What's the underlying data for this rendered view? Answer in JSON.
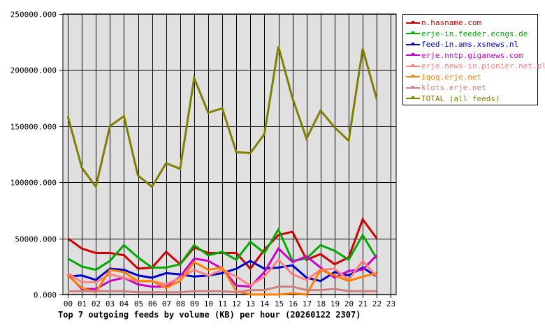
{
  "chart_data": {
    "type": "line",
    "title": "Top 7 outgoing feeds by volume (KB) per hour (20260122 2307)",
    "xlabel": "",
    "ylabel": "",
    "ylim": [
      0,
      250000
    ],
    "yticks": [
      "0.000",
      "50000.000",
      "100000.000",
      "150000.000",
      "200000.000",
      "250000.000"
    ],
    "ytick_values": [
      0,
      50000,
      100000,
      150000,
      200000,
      250000
    ],
    "categories": [
      "00",
      "01",
      "02",
      "03",
      "04",
      "05",
      "06",
      "07",
      "08",
      "09",
      "10",
      "11",
      "12",
      "13",
      "14",
      "15",
      "16",
      "17",
      "18",
      "19",
      "20",
      "21",
      "22",
      "23"
    ],
    "grid": true,
    "legend_position": "right",
    "plot_background": "#e0e0e0",
    "series": [
      {
        "name": "n.hasname.com",
        "color": "#cc0000",
        "values": [
          50000,
          41000,
          37000,
          37000,
          35000,
          23000,
          24000,
          38000,
          27000,
          42000,
          37000,
          37000,
          37000,
          23000,
          40000,
          53000,
          56000,
          31000,
          36000,
          27000,
          33000,
          67000,
          50000
        ]
      },
      {
        "name": "erje-in.feeder.ecngs.de",
        "color": "#00aa00",
        "values": [
          32000,
          25000,
          22000,
          30000,
          44000,
          33000,
          24000,
          24000,
          27000,
          44000,
          35000,
          38000,
          31000,
          47000,
          37000,
          58000,
          30000,
          32000,
          44000,
          39000,
          31000,
          53000,
          32000
        ]
      },
      {
        "name": "feed-in.ams.xsnews.nl",
        "color": "#0000cc",
        "values": [
          16000,
          17000,
          13000,
          23000,
          22000,
          17000,
          15000,
          19000,
          18000,
          16000,
          17000,
          19000,
          23000,
          30000,
          23000,
          24000,
          26000,
          15000,
          12000,
          20000,
          17000,
          24000,
          16000
        ]
      },
      {
        "name": "erje.nntp.giganews.com",
        "color": "#cc00cc",
        "values": [
          18000,
          5000,
          5000,
          12000,
          15000,
          9000,
          7000,
          7000,
          16000,
          32000,
          30000,
          23000,
          8000,
          7000,
          20000,
          41000,
          29000,
          34000,
          24000,
          15000,
          21000,
          22000,
          35000
        ]
      },
      {
        "name": "erje.news-in.pionier.net.pl",
        "color": "#ff8080",
        "values": [
          19000,
          11000,
          11000,
          18000,
          15000,
          12000,
          12000,
          9000,
          15000,
          22000,
          17000,
          22000,
          16000,
          8000,
          16000,
          31000,
          18000,
          13000,
          22000,
          23000,
          13000,
          30000,
          16000
        ]
      },
      {
        "name": "iqoq.erje.net",
        "color": "#ff8000",
        "values": [
          17000,
          6000,
          2000,
          22000,
          20000,
          12000,
          12000,
          6000,
          12000,
          29000,
          22000,
          24000,
          3000,
          0,
          0,
          0,
          1000,
          0,
          22000,
          17000,
          12000,
          16000,
          19000
        ]
      },
      {
        "name": "klots.erje.net",
        "color": "#cc8080",
        "values": [
          3000,
          3000,
          3000,
          3000,
          3000,
          2000,
          2000,
          2000,
          2000,
          3000,
          3000,
          3000,
          2000,
          4000,
          4000,
          7000,
          7000,
          4000,
          4000,
          5000,
          3000,
          3000,
          3000
        ]
      },
      {
        "name": "TOTAL (all feeds)",
        "color": "#808000",
        "values": [
          159000,
          113000,
          96000,
          150000,
          159000,
          106000,
          96000,
          117000,
          112000,
          193000,
          162000,
          166000,
          127000,
          126000,
          143000,
          221000,
          175000,
          139000,
          164000,
          149000,
          137000,
          219000,
          174000
        ]
      }
    ]
  }
}
